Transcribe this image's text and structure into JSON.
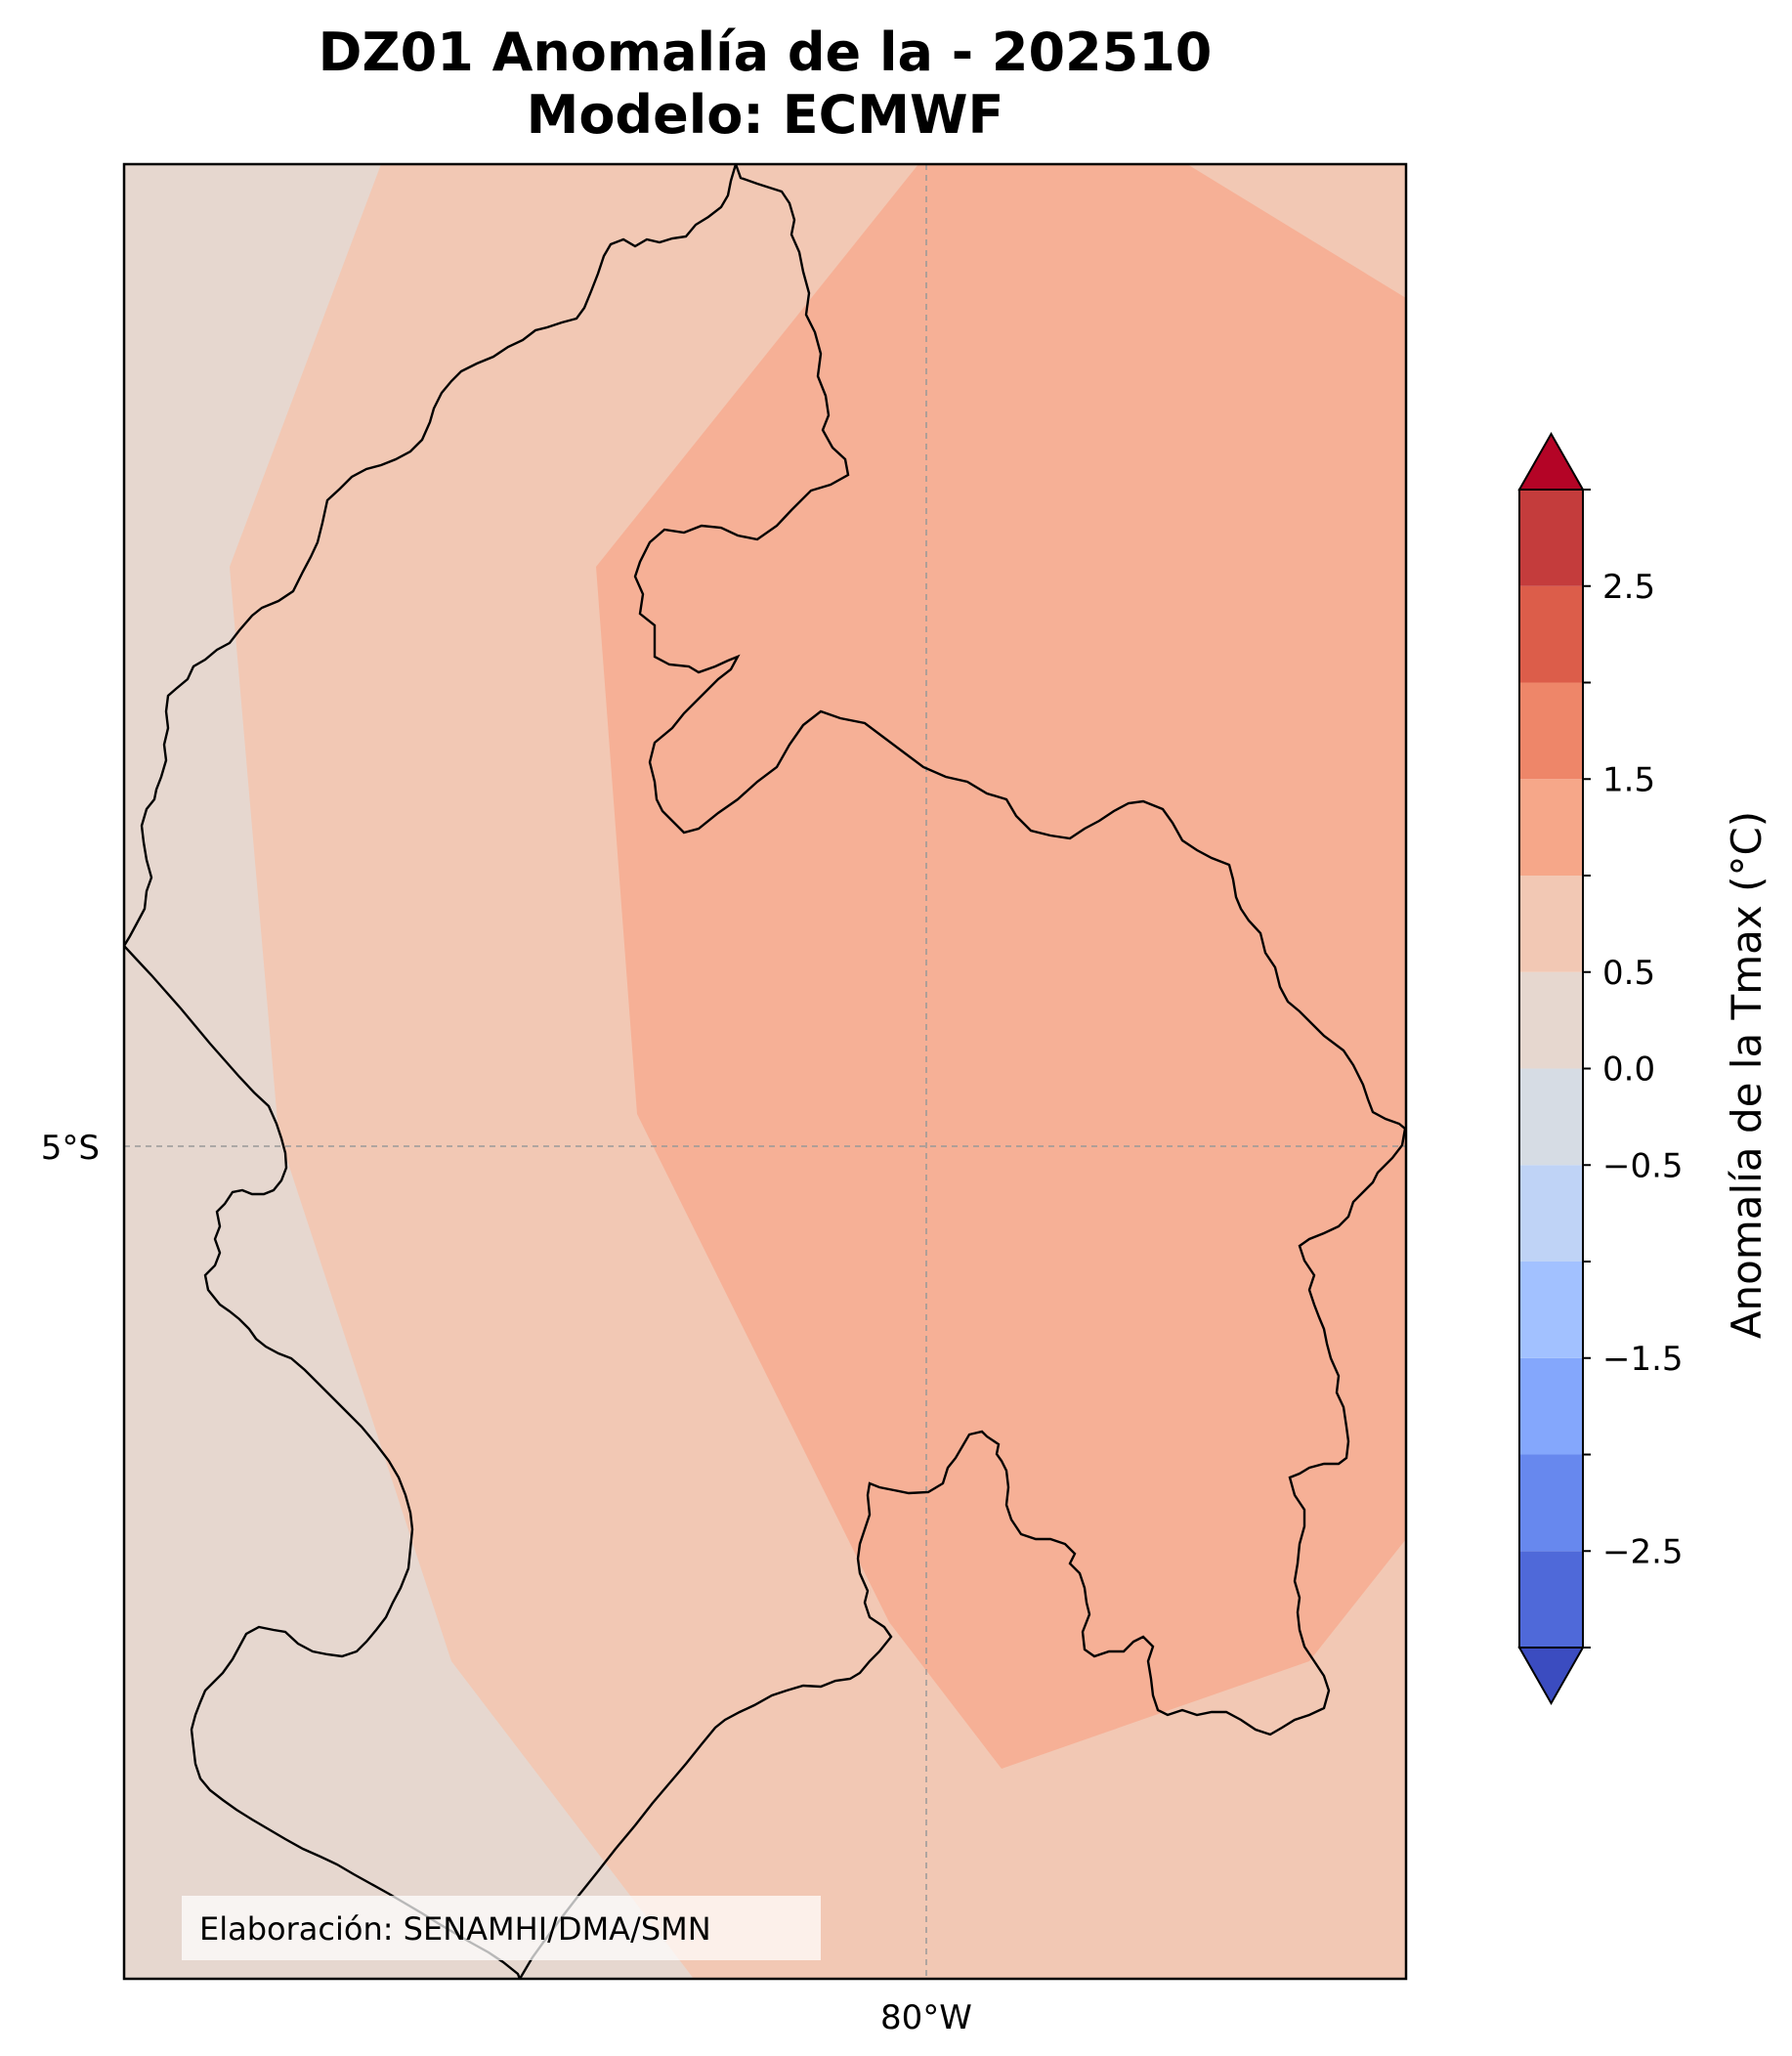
{
  "title": {
    "line1": "DZ01 Anomalía de la - 202510",
    "line2": "Modelo: ECMWF"
  },
  "map": {
    "lat_label": "5°S",
    "lon_label": "80°W",
    "gridlines": true,
    "credit": "Elaboración: SENAMHI/DMA/SMN"
  },
  "colorbar": {
    "title": "Anomalía de la Tmax (°C)",
    "orientation": "vertical",
    "extend": "both",
    "tick_labels": [
      "2.5",
      "1.5",
      "0.5",
      "0.0",
      "−0.5",
      "−1.5",
      "−2.5"
    ],
    "levels": [
      -3.0,
      -2.5,
      -2.0,
      -1.5,
      -1.0,
      -0.5,
      0.0,
      0.5,
      1.0,
      1.5,
      2.0,
      2.5,
      3.0
    ],
    "colors": [
      "#3b4cc0",
      "#4f69d9",
      "#6788ee",
      "#84a7fc",
      "#a2c1ff",
      "#bfd3f6",
      "#d6dce4",
      "#e6d7cf",
      "#f2c8b4",
      "#f6a789",
      "#ee8669",
      "#dc5d4a",
      "#c43c3c",
      "#b40426"
    ],
    "under_color": "#3b4cc0",
    "over_color": "#b40426"
  },
  "legend_colors": {
    "background_anomaly": "#e6d7cf",
    "mid_anomaly": "#f2c8b4",
    "high_anomaly": "#f6b096"
  }
}
